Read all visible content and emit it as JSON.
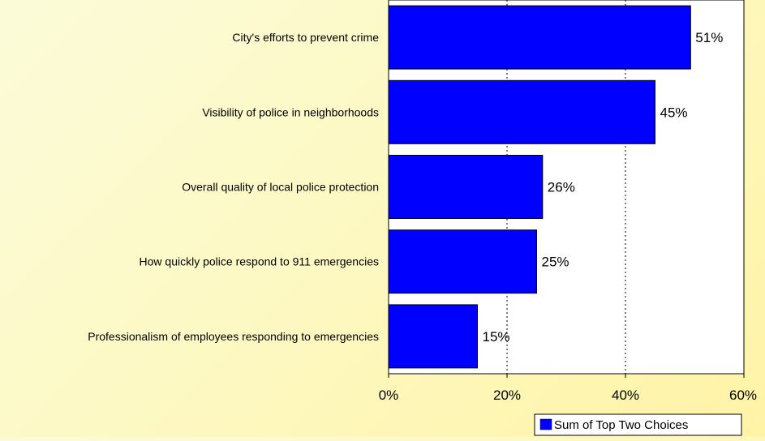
{
  "chart_data": {
    "type": "bar",
    "orientation": "horizontal",
    "categories": [
      "City's efforts to prevent crime",
      "Visibility of police in neighborhoods",
      "Overall quality of local police protection",
      "How quickly police respond to 911 emergencies",
      "Professionalism of employees responding to emergencies"
    ],
    "series": [
      {
        "name": "Sum of Top Two Choices",
        "values": [
          51,
          45,
          26,
          25,
          15
        ],
        "color": "#0000ff"
      }
    ],
    "data_labels": [
      "51%",
      "45%",
      "26%",
      "25%",
      "15%"
    ],
    "xlim": [
      0,
      60
    ],
    "xticks": [
      0,
      20,
      40,
      60
    ],
    "xtick_labels": [
      "0%",
      "20%",
      "40%",
      "60%"
    ],
    "grid": "vertical dotted",
    "legend_position": "bottom-right",
    "title": "",
    "xlabel": "",
    "ylabel": ""
  }
}
